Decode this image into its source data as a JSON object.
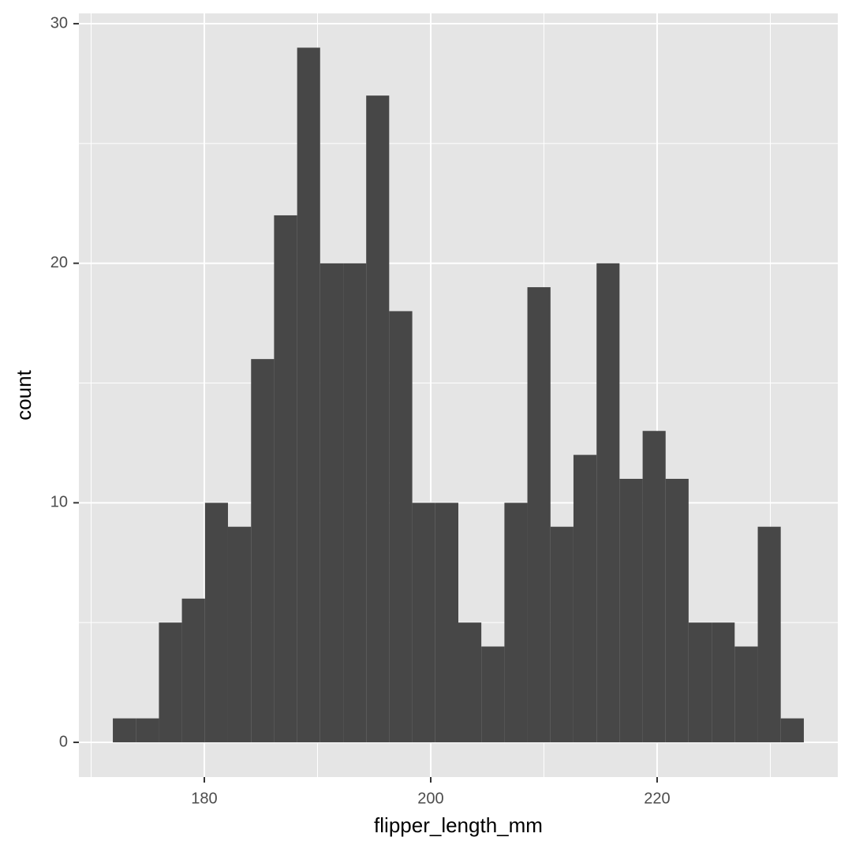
{
  "chart_data": {
    "type": "histogram",
    "xlabel": "flipper_length_mm",
    "ylabel": "count",
    "bins": [
      171.92,
      173.95,
      175.99,
      178.02,
      180.06,
      182.09,
      184.13,
      186.16,
      188.2,
      190.23,
      192.27,
      194.3,
      196.33,
      198.37,
      200.4,
      202.44,
      204.47,
      206.51,
      208.54,
      210.58,
      212.61,
      214.65,
      216.68,
      218.72,
      220.75,
      222.78,
      224.82,
      226.85,
      228.89,
      230.92,
      232.96
    ],
    "values": [
      1,
      1,
      5,
      6,
      10,
      9,
      16,
      22,
      29,
      20,
      20,
      27,
      18,
      10,
      10,
      5,
      4,
      10,
      19,
      9,
      12,
      20,
      11,
      13,
      11,
      5,
      5,
      4,
      9,
      1
    ],
    "color": "#474747",
    "xlim": [
      168.92,
      235.96
    ],
    "ylim": [
      -1.45,
      30.43
    ],
    "xticks": [
      180,
      200,
      220
    ],
    "yticks": [
      0,
      10,
      20,
      30
    ],
    "xminor": [
      170,
      190,
      210,
      230
    ],
    "yminor": [
      5,
      15,
      25
    ],
    "grid": true
  }
}
